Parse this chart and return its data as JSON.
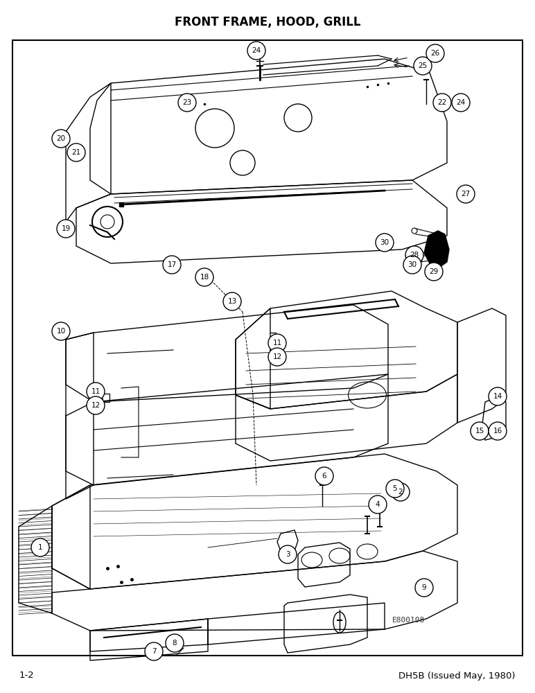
{
  "title": "FRONT FRAME, HOOD, GRILL",
  "title_fontsize": 12,
  "title_fontweight": "bold",
  "footer_left": "1-2",
  "footer_right": "DH5B (Issued May, 1980)",
  "footer_fontsize": 9.5,
  "watermark": "E800108",
  "bg_color": "#ffffff",
  "border_color": "#000000",
  "fig_w": 7.72,
  "fig_h": 10.0,
  "dpi": 100
}
